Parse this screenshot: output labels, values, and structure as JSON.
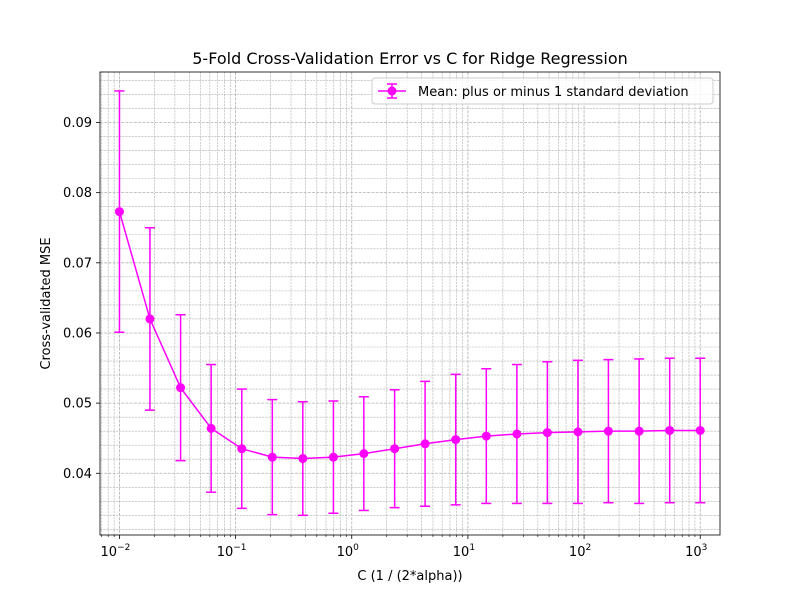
{
  "chart_data": {
    "type": "line",
    "title": "5-Fold Cross-Validation Error vs C for Ridge Regression",
    "xlabel": "C (1 / (2*alpha))",
    "ylabel": "Cross-validated MSE",
    "xscale": "log",
    "xlim": [
      0.0068,
      1480
    ],
    "ylim": [
      0.0312,
      0.0972
    ],
    "grid": "major and minor (both axes), dashed",
    "legend_position": "top-right",
    "xticks": [
      {
        "value": 0.01,
        "base": "10",
        "exp": "−2"
      },
      {
        "value": 0.1,
        "base": "10",
        "exp": "−1"
      },
      {
        "value": 1,
        "base": "10",
        "exp": "0"
      },
      {
        "value": 10,
        "base": "10",
        "exp": "1"
      },
      {
        "value": 100,
        "base": "10",
        "exp": "2"
      },
      {
        "value": 1000,
        "base": "10",
        "exp": "3"
      }
    ],
    "yticks": [
      {
        "value": 0.04,
        "label": "0.04"
      },
      {
        "value": 0.05,
        "label": "0.05"
      },
      {
        "value": 0.06,
        "label": "0.06"
      },
      {
        "value": 0.07,
        "label": "0.07"
      },
      {
        "value": 0.08,
        "label": "0.08"
      },
      {
        "value": 0.09,
        "label": "0.09"
      }
    ],
    "series": [
      {
        "name": "Mean: plus or minus 1 standard deviation",
        "color": "#ff00ff",
        "marker": "circle",
        "x": [
          0.01,
          0.0183,
          0.0336,
          0.0616,
          0.113,
          0.207,
          0.379,
          0.695,
          1.27,
          2.34,
          4.28,
          7.85,
          14.4,
          26.4,
          48.3,
          88.6,
          162,
          298,
          546,
          1000
        ],
        "y": [
          0.0773,
          0.062,
          0.0522,
          0.0464,
          0.0435,
          0.0423,
          0.0421,
          0.0423,
          0.0428,
          0.0435,
          0.0442,
          0.0448,
          0.0453,
          0.0456,
          0.0458,
          0.0459,
          0.046,
          0.046,
          0.0461,
          0.0461
        ],
        "yerr": [
          0.0172,
          0.013,
          0.0104,
          0.0091,
          0.0085,
          0.0082,
          0.0081,
          0.008,
          0.0081,
          0.0084,
          0.0089,
          0.0093,
          0.0096,
          0.0099,
          0.0101,
          0.0102,
          0.0102,
          0.0103,
          0.0103,
          0.0103
        ]
      }
    ]
  }
}
